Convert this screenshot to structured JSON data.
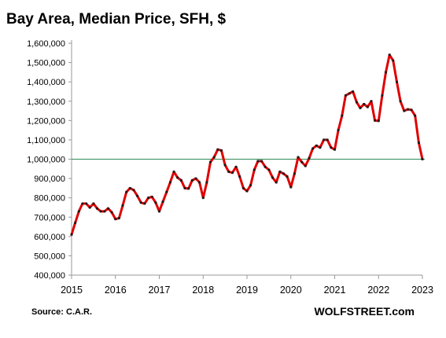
{
  "chart_data": {
    "type": "line",
    "title": "Bay Area, Median Price, SFH, $",
    "xlabel": "",
    "ylabel": "",
    "ylim": [
      400000,
      1600000
    ],
    "xlim": [
      2015,
      2023
    ],
    "y_ticks": [
      400000,
      500000,
      600000,
      700000,
      800000,
      900000,
      1000000,
      1100000,
      1200000,
      1300000,
      1400000,
      1500000,
      1600000
    ],
    "y_tick_labels": [
      "400,000",
      "500,000",
      "600,000",
      "700,000",
      "800,000",
      "900,000",
      "1,000,000",
      "1,100,000",
      "1,200,000",
      "1,300,000",
      "1,400,000",
      "1,500,000",
      "1,600,000"
    ],
    "x_ticks": [
      2015,
      2016,
      2017,
      2018,
      2019,
      2020,
      2021,
      2022,
      2023
    ],
    "x_tick_labels": [
      "2015",
      "2016",
      "2017",
      "2018",
      "2019",
      "2020",
      "2021",
      "2022",
      "2023"
    ],
    "reference_line": 1000000,
    "grid": false,
    "colors": {
      "line": "#e00000",
      "markers": "#1a1a1a",
      "reference": "#2e8b57",
      "axis": "#999999"
    },
    "series": [
      {
        "x_start": "2015-01",
        "frequency": "monthly",
        "values": [
          610000,
          670000,
          730000,
          770000,
          770000,
          750000,
          770000,
          745000,
          730000,
          730000,
          745000,
          725000,
          690000,
          695000,
          760000,
          830000,
          850000,
          840000,
          810000,
          775000,
          770000,
          800000,
          805000,
          775000,
          730000,
          780000,
          830000,
          880000,
          935000,
          905000,
          890000,
          850000,
          848000,
          890000,
          900000,
          880000,
          800000,
          880000,
          985000,
          1010000,
          1050000,
          1045000,
          970000,
          935000,
          930000,
          960000,
          910000,
          850000,
          835000,
          865000,
          945000,
          990000,
          990000,
          960000,
          945000,
          905000,
          880000,
          935000,
          925000,
          910000,
          855000,
          925000,
          1010000,
          985000,
          965000,
          1005000,
          1055000,
          1070000,
          1060000,
          1100000,
          1100000,
          1060000,
          1050000,
          1150000,
          1225000,
          1330000,
          1340000,
          1350000,
          1295000,
          1265000,
          1285000,
          1270000,
          1300000,
          1200000,
          1198000,
          1330000,
          1450000,
          1540000,
          1510000,
          1400000,
          1300000,
          1250000,
          1258000,
          1255000,
          1225000,
          1085000,
          1000000
        ]
      }
    ]
  },
  "footer": {
    "source": "Source: C.A.R.",
    "brand": "WOLFSTREET.com"
  }
}
